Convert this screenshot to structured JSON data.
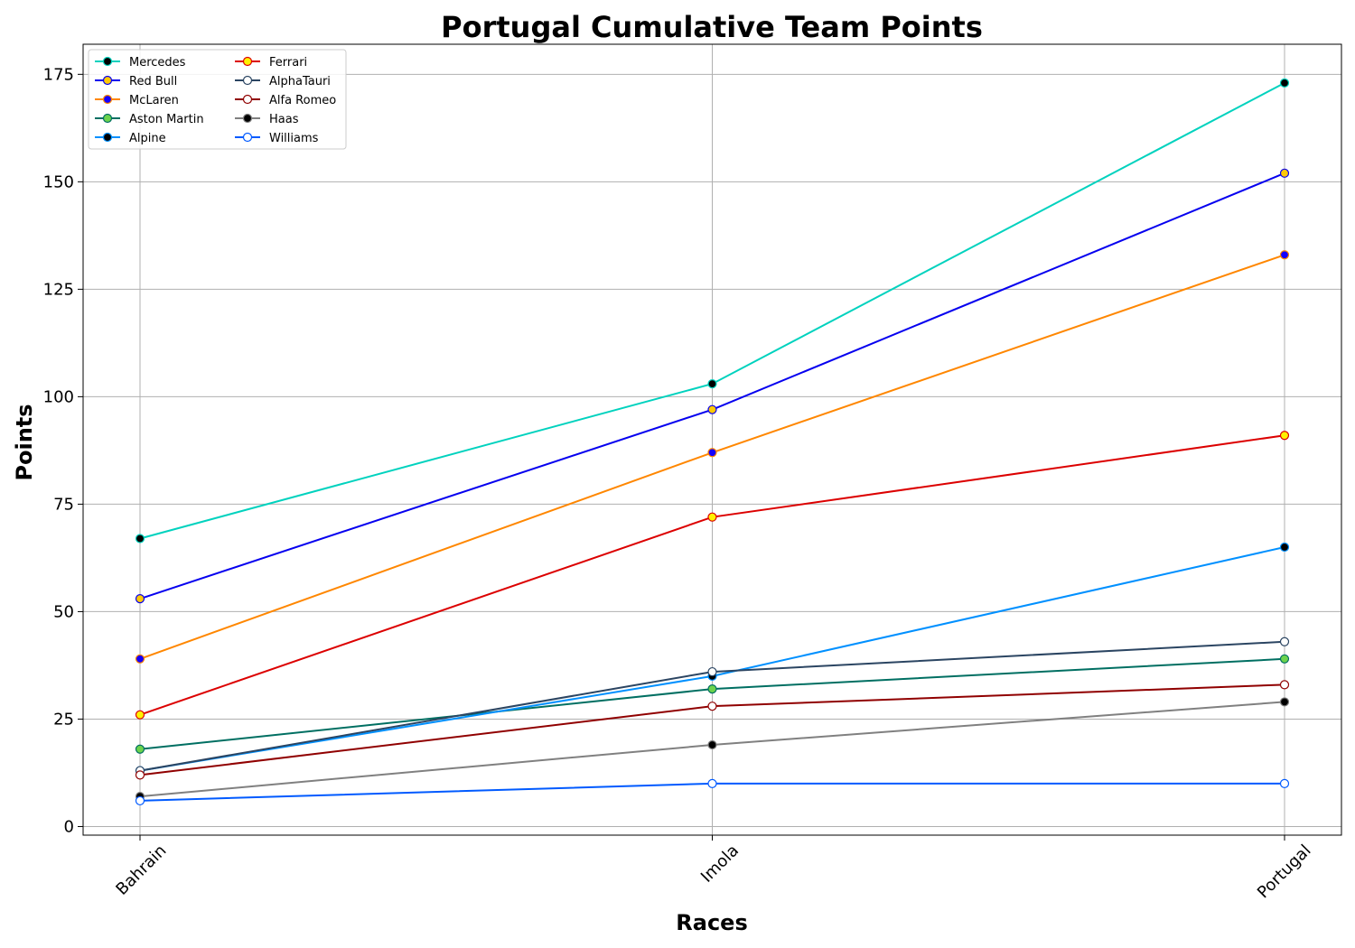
{
  "chart_data": {
    "type": "line",
    "title": "Portugal Cumulative Team Points",
    "xlabel": "Races",
    "ylabel": "Points",
    "categories": [
      "Bahrain",
      "Imola",
      "Portugal"
    ],
    "ylim": [
      -2,
      182
    ],
    "yticks": [
      0,
      25,
      50,
      75,
      100,
      125,
      150,
      175
    ],
    "grid": true,
    "legend_position": "top-left",
    "series": [
      {
        "name": "Mercedes",
        "values": [
          67,
          103,
          173
        ],
        "color": "#00D2BE",
        "marker_fill": "#000000",
        "marker_edge": "#00D2BE"
      },
      {
        "name": "Red Bull",
        "values": [
          53,
          97,
          152
        ],
        "color": "#0600EF",
        "marker_fill": "#FFC906",
        "marker_edge": "#0600EF"
      },
      {
        "name": "McLaren",
        "values": [
          39,
          87,
          133
        ],
        "color": "#FF8700",
        "marker_fill": "#1400FF",
        "marker_edge": "#FF8700"
      },
      {
        "name": "Aston Martin",
        "values": [
          18,
          32,
          39
        ],
        "color": "#006F62",
        "marker_fill": "#6CD34D",
        "marker_edge": "#006F62"
      },
      {
        "name": "Alpine",
        "values": [
          13,
          35,
          65
        ],
        "color": "#0090FF",
        "marker_fill": "#000000",
        "marker_edge": "#0090FF"
      },
      {
        "name": "Ferrari",
        "values": [
          26,
          72,
          91
        ],
        "color": "#DC0000",
        "marker_fill": "#FFF200",
        "marker_edge": "#DC0000"
      },
      {
        "name": "AlphaTauri",
        "values": [
          13,
          36,
          43
        ],
        "color": "#2B4562",
        "marker_fill": "#FFFFFF",
        "marker_edge": "#2B4562"
      },
      {
        "name": "Alfa Romeo",
        "values": [
          12,
          28,
          33
        ],
        "color": "#900000",
        "marker_fill": "#FFFFFF",
        "marker_edge": "#900000"
      },
      {
        "name": "Haas",
        "values": [
          7,
          19,
          29
        ],
        "color": "#808080",
        "marker_fill": "#000000",
        "marker_edge": "#808080"
      },
      {
        "name": "Williams",
        "values": [
          6,
          10,
          10
        ],
        "color": "#005AFF",
        "marker_fill": "#FFFFFF",
        "marker_edge": "#005AFF"
      }
    ]
  }
}
